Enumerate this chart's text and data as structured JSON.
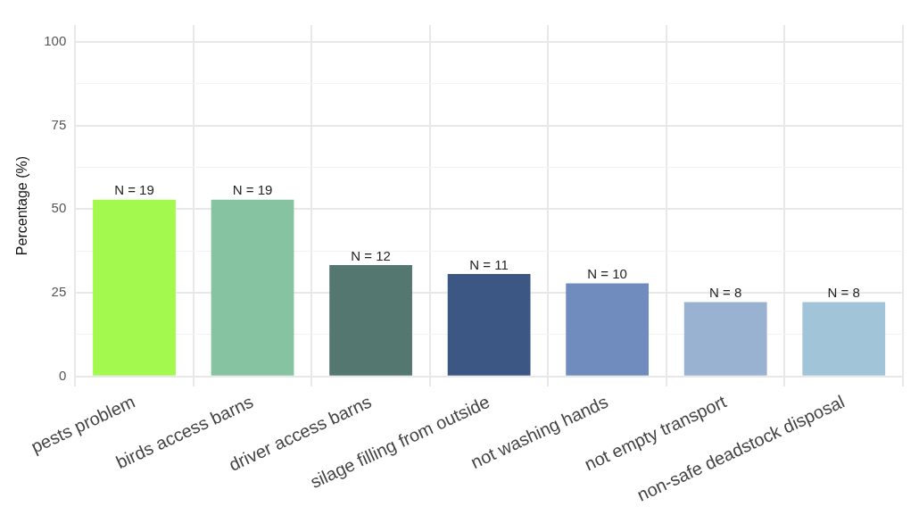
{
  "chart_data": {
    "type": "bar",
    "ylabel": "Percentage (%)",
    "categories": [
      "pests problem",
      "birds access barns",
      "driver access barns",
      "silage filling from outside",
      "not washing hands",
      "not empty transport",
      "non-safe deadstock disposal"
    ],
    "values": [
      52.8,
      52.8,
      33.3,
      30.6,
      27.8,
      22.2,
      22.2
    ],
    "colors": [
      "#a4f94e",
      "#86c3a0",
      "#547870",
      "#3d5785",
      "#708cbf",
      "#9ab2d1",
      "#a2c4d8"
    ],
    "annotations": [
      {
        "text": "N = 19",
        "x": "pests problem",
        "y": 52.8
      },
      {
        "text": "N = 19",
        "x": "birds access barns",
        "y": 52.8
      },
      {
        "text": "N = 12",
        "x": "driver access barns",
        "y": 33.3
      },
      {
        "text": "N = 11",
        "x": "silage filling from outside",
        "y": 30.6
      },
      {
        "text": "N = 10",
        "x": "not washing hands",
        "y": 27.8
      },
      {
        "text": "N = 8",
        "x": "not empty transport",
        "y": 22.2
      },
      {
        "text": "N = 8",
        "x": "non-safe deadstock disposal",
        "y": 22.2
      }
    ],
    "ylim": [
      -3,
      105
    ],
    "yticks": [
      0,
      {
        "value": 12.5,
        "label": null
      },
      25,
      {
        "value": 37.5,
        "label": null
      },
      50,
      {
        "value": 62.5,
        "label": null
      },
      75,
      {
        "value": 87.5,
        "label": null
      },
      100
    ],
    "grid": true,
    "legend": false
  }
}
